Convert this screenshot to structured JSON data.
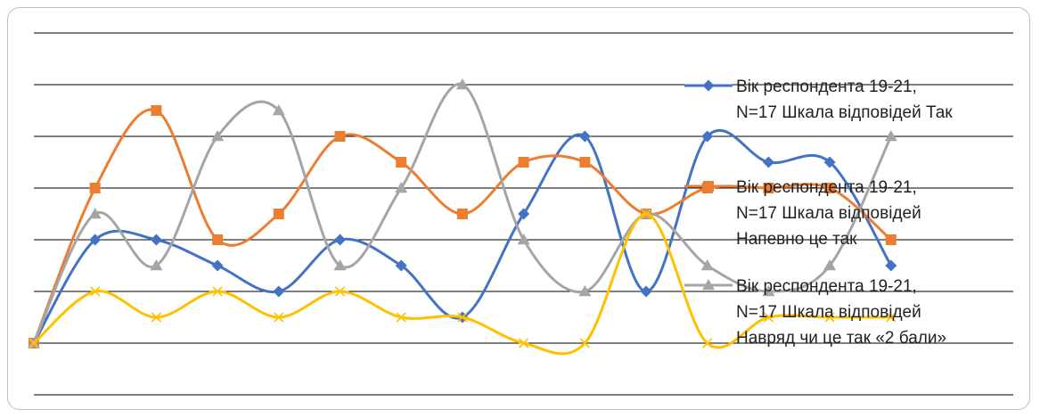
{
  "chart_data": {
    "type": "line",
    "title": "",
    "xlabel": "",
    "ylabel": "",
    "x": [
      1,
      2,
      3,
      4,
      5,
      6,
      7,
      8,
      9,
      10,
      11,
      12,
      13,
      14,
      15
    ],
    "ylim": [
      0,
      6
    ],
    "grid": true,
    "legend_position": "right",
    "series": [
      {
        "name_lines": [
          "Вік респондента 19-21,",
          "N=17 Шкала відповідей Так"
        ],
        "color": "#4472c4",
        "marker": "diamond",
        "values": [
          0,
          2,
          2,
          1.5,
          1,
          2,
          1.5,
          0.5,
          2.5,
          4,
          1,
          4,
          3.5,
          3.5,
          1.5
        ]
      },
      {
        "name_lines": [
          "Вік респондента 19-21,",
          "N=17 Шкала відповідей",
          "Напевно це так"
        ],
        "color": "#ed7d31",
        "marker": "square",
        "values": [
          0,
          3,
          4.5,
          2,
          2.5,
          4,
          3.5,
          2.5,
          3.5,
          3.5,
          2.5,
          3,
          3,
          3,
          2
        ]
      },
      {
        "name_lines": [
          "Вік респондента 19-21,",
          "N=17 Шкала відповідей",
          "Навряд чи це так «2 бали»"
        ],
        "color": "#a5a5a5",
        "marker": "triangle",
        "values": [
          0,
          2.5,
          1.5,
          4,
          4.5,
          1.5,
          3,
          5,
          2,
          1,
          2.5,
          1.5,
          1,
          1.5,
          4
        ]
      },
      {
        "name_lines": [],
        "color": "#ffc000",
        "marker": "x",
        "values": [
          0,
          1,
          0.5,
          1,
          0.5,
          1,
          0.5,
          0.5,
          0,
          0,
          2.5,
          0,
          0.5,
          0.5,
          0.5
        ]
      }
    ]
  }
}
